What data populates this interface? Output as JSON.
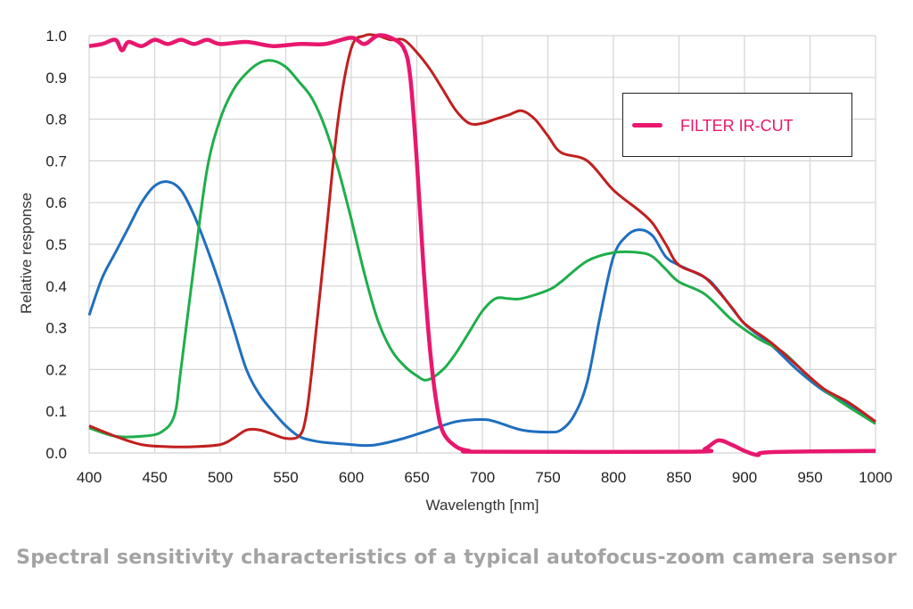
{
  "chart_data": {
    "type": "line",
    "title": "",
    "xlabel": "Wavelength [nm]",
    "ylabel": "Relative response",
    "xlim": [
      400,
      1000
    ],
    "ylim": [
      0.0,
      1.0
    ],
    "xticks": [
      "400",
      "450",
      "500",
      "550",
      "600",
      "650",
      "700",
      "750",
      "800",
      "850",
      "900",
      "950",
      "1000"
    ],
    "yticks": [
      "0.0",
      "0.1",
      "0.2",
      "0.3",
      "0.4",
      "0.5",
      "0.6",
      "0.7",
      "0.8",
      "0.9",
      "1.0"
    ],
    "grid": true,
    "legend_position": "top-right",
    "series": [
      {
        "color": "#1f6fbf",
        "points": [
          [
            400,
            0.33
          ],
          [
            410,
            0.42
          ],
          [
            420,
            0.48
          ],
          [
            430,
            0.54
          ],
          [
            440,
            0.6
          ],
          [
            450,
            0.64
          ],
          [
            460,
            0.65
          ],
          [
            470,
            0.63
          ],
          [
            480,
            0.57
          ],
          [
            490,
            0.49
          ],
          [
            500,
            0.4
          ],
          [
            510,
            0.3
          ],
          [
            520,
            0.2
          ],
          [
            530,
            0.14
          ],
          [
            540,
            0.1
          ],
          [
            550,
            0.065
          ],
          [
            560,
            0.04
          ],
          [
            570,
            0.03
          ],
          [
            580,
            0.025
          ],
          [
            600,
            0.02
          ],
          [
            610,
            0.018
          ],
          [
            620,
            0.02
          ],
          [
            640,
            0.035
          ],
          [
            660,
            0.055
          ],
          [
            680,
            0.075
          ],
          [
            700,
            0.08
          ],
          [
            710,
            0.075
          ],
          [
            730,
            0.055
          ],
          [
            750,
            0.05
          ],
          [
            760,
            0.055
          ],
          [
            770,
            0.09
          ],
          [
            780,
            0.17
          ],
          [
            790,
            0.33
          ],
          [
            800,
            0.47
          ],
          [
            810,
            0.52
          ],
          [
            820,
            0.535
          ],
          [
            830,
            0.52
          ],
          [
            840,
            0.47
          ],
          [
            850,
            0.45
          ],
          [
            870,
            0.42
          ],
          [
            880,
            0.39
          ],
          [
            900,
            0.31
          ],
          [
            920,
            0.26
          ],
          [
            940,
            0.2
          ],
          [
            960,
            0.15
          ],
          [
            980,
            0.115
          ],
          [
            1000,
            0.075
          ]
        ]
      },
      {
        "color": "#1fae4b",
        "points": [
          [
            400,
            0.06
          ],
          [
            420,
            0.04
          ],
          [
            440,
            0.04
          ],
          [
            455,
            0.05
          ],
          [
            465,
            0.09
          ],
          [
            470,
            0.2
          ],
          [
            480,
            0.45
          ],
          [
            490,
            0.68
          ],
          [
            500,
            0.8
          ],
          [
            510,
            0.87
          ],
          [
            520,
            0.91
          ],
          [
            530,
            0.935
          ],
          [
            540,
            0.94
          ],
          [
            550,
            0.925
          ],
          [
            560,
            0.89
          ],
          [
            570,
            0.85
          ],
          [
            580,
            0.78
          ],
          [
            590,
            0.68
          ],
          [
            600,
            0.56
          ],
          [
            610,
            0.43
          ],
          [
            620,
            0.32
          ],
          [
            630,
            0.25
          ],
          [
            640,
            0.21
          ],
          [
            650,
            0.185
          ],
          [
            658,
            0.175
          ],
          [
            670,
            0.2
          ],
          [
            680,
            0.24
          ],
          [
            690,
            0.29
          ],
          [
            700,
            0.34
          ],
          [
            710,
            0.37
          ],
          [
            720,
            0.37
          ],
          [
            730,
            0.37
          ],
          [
            750,
            0.39
          ],
          [
            760,
            0.41
          ],
          [
            780,
            0.46
          ],
          [
            800,
            0.48
          ],
          [
            820,
            0.48
          ],
          [
            830,
            0.47
          ],
          [
            840,
            0.44
          ],
          [
            850,
            0.41
          ],
          [
            870,
            0.38
          ],
          [
            890,
            0.32
          ],
          [
            910,
            0.275
          ],
          [
            930,
            0.24
          ],
          [
            950,
            0.18
          ],
          [
            970,
            0.13
          ],
          [
            1000,
            0.07
          ]
        ]
      },
      {
        "color": "#c0201f",
        "points": [
          [
            400,
            0.065
          ],
          [
            420,
            0.04
          ],
          [
            440,
            0.02
          ],
          [
            460,
            0.015
          ],
          [
            480,
            0.015
          ],
          [
            500,
            0.02
          ],
          [
            510,
            0.035
          ],
          [
            520,
            0.055
          ],
          [
            530,
            0.055
          ],
          [
            540,
            0.045
          ],
          [
            550,
            0.035
          ],
          [
            560,
            0.04
          ],
          [
            565,
            0.08
          ],
          [
            570,
            0.2
          ],
          [
            580,
            0.5
          ],
          [
            590,
            0.8
          ],
          [
            600,
            0.97
          ],
          [
            610,
            1.0
          ],
          [
            620,
            1.0
          ],
          [
            630,
            0.99
          ],
          [
            640,
            0.99
          ],
          [
            650,
            0.96
          ],
          [
            660,
            0.92
          ],
          [
            670,
            0.87
          ],
          [
            680,
            0.82
          ],
          [
            690,
            0.79
          ],
          [
            700,
            0.79
          ],
          [
            710,
            0.8
          ],
          [
            720,
            0.81
          ],
          [
            730,
            0.82
          ],
          [
            740,
            0.8
          ],
          [
            750,
            0.76
          ],
          [
            760,
            0.72
          ],
          [
            780,
            0.7
          ],
          [
            800,
            0.63
          ],
          [
            820,
            0.58
          ],
          [
            830,
            0.55
          ],
          [
            840,
            0.5
          ],
          [
            850,
            0.45
          ],
          [
            870,
            0.42
          ],
          [
            890,
            0.35
          ],
          [
            900,
            0.31
          ],
          [
            920,
            0.265
          ],
          [
            940,
            0.21
          ],
          [
            960,
            0.155
          ],
          [
            980,
            0.12
          ],
          [
            1000,
            0.075
          ]
        ]
      },
      {
        "name": "FILTER IR-CUT",
        "color": "#e8176e",
        "points": [
          [
            400,
            0.975
          ],
          [
            410,
            0.98
          ],
          [
            420,
            0.99
          ],
          [
            425,
            0.965
          ],
          [
            430,
            0.985
          ],
          [
            440,
            0.975
          ],
          [
            450,
            0.99
          ],
          [
            460,
            0.98
          ],
          [
            470,
            0.99
          ],
          [
            480,
            0.98
          ],
          [
            490,
            0.99
          ],
          [
            500,
            0.98
          ],
          [
            520,
            0.985
          ],
          [
            540,
            0.975
          ],
          [
            560,
            0.98
          ],
          [
            580,
            0.98
          ],
          [
            600,
            0.995
          ],
          [
            610,
            0.98
          ],
          [
            620,
            1.0
          ],
          [
            630,
            0.995
          ],
          [
            640,
            0.97
          ],
          [
            645,
            0.9
          ],
          [
            650,
            0.7
          ],
          [
            655,
            0.45
          ],
          [
            660,
            0.25
          ],
          [
            665,
            0.12
          ],
          [
            670,
            0.05
          ],
          [
            680,
            0.015
          ],
          [
            690,
            0.005
          ],
          [
            700,
            0.003
          ],
          [
            860,
            0.003
          ],
          [
            870,
            0.01
          ],
          [
            880,
            0.03
          ],
          [
            890,
            0.02
          ],
          [
            900,
            0.005
          ],
          [
            910,
            -0.005
          ],
          [
            920,
            0.002
          ],
          [
            1000,
            0.005
          ]
        ]
      }
    ]
  },
  "caption": "Spectral sensitivity characteristics of a typical autofocus-zoom camera sensor"
}
